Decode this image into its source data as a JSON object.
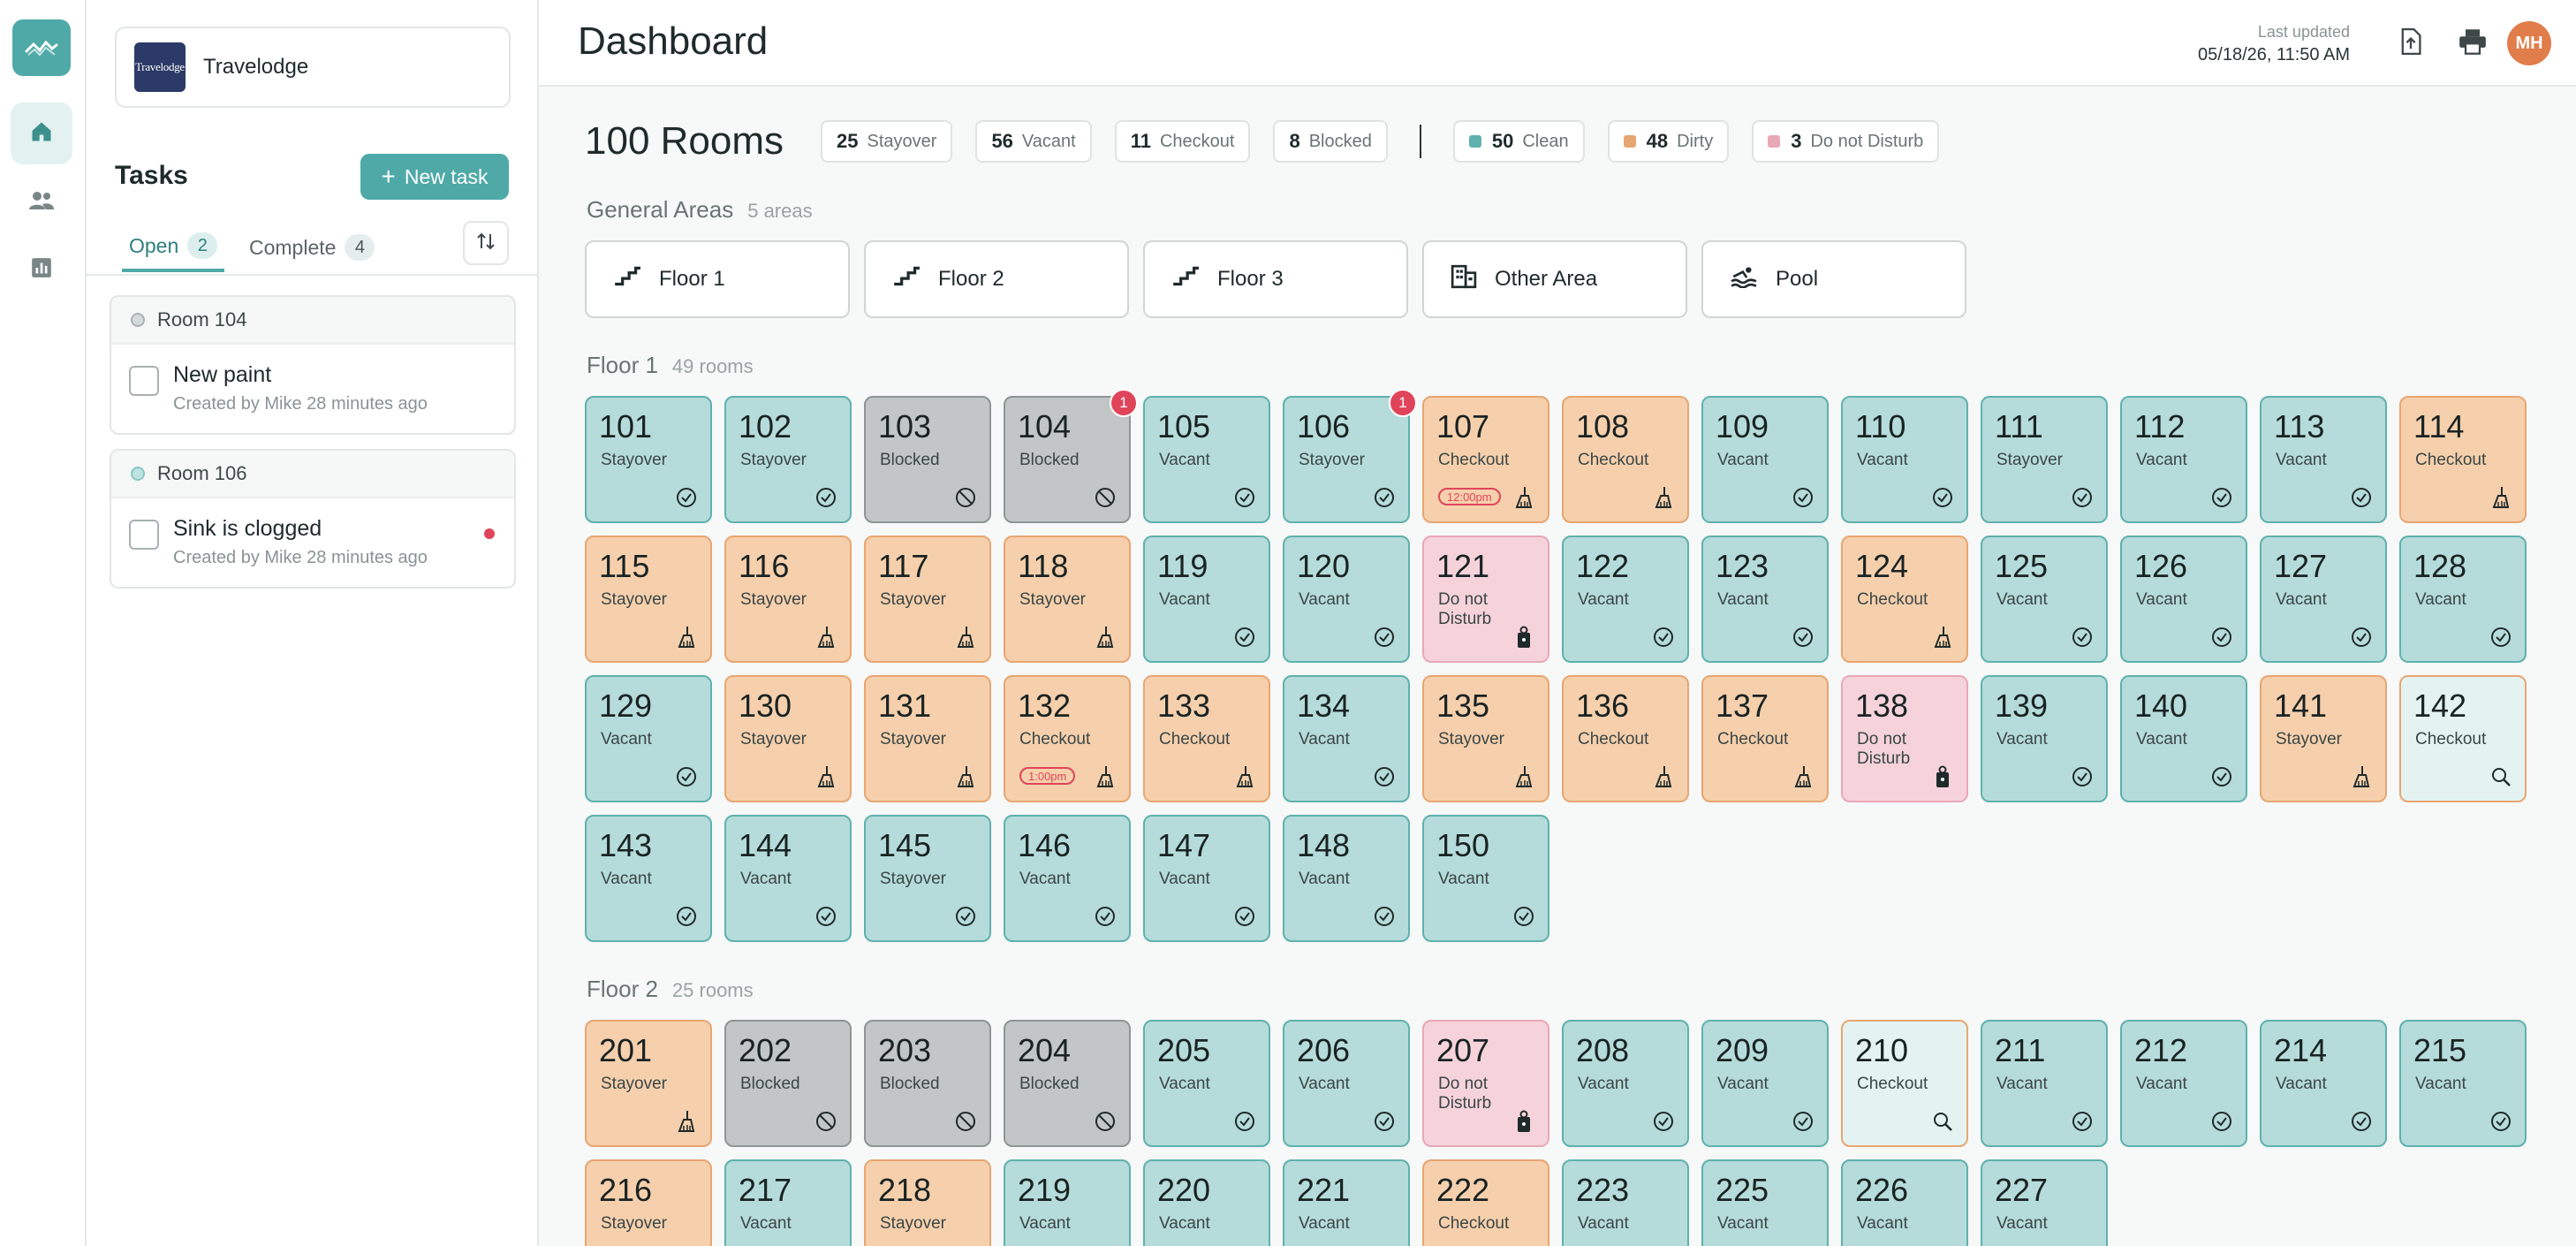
{
  "org": {
    "name": "Travelodge",
    "logo_text": "Travelodge"
  },
  "tasks": {
    "title": "Tasks",
    "new_task_label": "New task",
    "tabs": [
      {
        "label": "Open",
        "count": "2"
      },
      {
        "label": "Complete",
        "count": "4"
      }
    ],
    "items": [
      {
        "room": "Room 104",
        "title": "New paint",
        "meta": "Created by Mike 28 minutes ago",
        "flag": false
      },
      {
        "room": "Room 106",
        "title": "Sink is clogged",
        "meta": "Created by Mike 28 minutes ago",
        "flag": true
      }
    ]
  },
  "header": {
    "title": "Dashboard",
    "last_updated_label": "Last updated",
    "last_updated_value": "05/18/26, 11:50 AM",
    "avatar_initials": "MH"
  },
  "summary": {
    "rooms_label": "100 Rooms",
    "chips": [
      {
        "count": "25",
        "label": "Stayover"
      },
      {
        "count": "56",
        "label": "Vacant"
      },
      {
        "count": "11",
        "label": "Checkout"
      },
      {
        "count": "8",
        "label": "Blocked"
      }
    ],
    "clean_chips": [
      {
        "count": "50",
        "label": "Clean",
        "color": "#5fb1ad"
      },
      {
        "count": "48",
        "label": "Dirty",
        "color": "#e7a672"
      },
      {
        "count": "3",
        "label": "Do not Disturb",
        "color": "#e8a8b6"
      }
    ]
  },
  "general_areas": {
    "title": "General Areas",
    "count_label": "5 areas",
    "items": [
      {
        "label": "Floor 1",
        "icon": "stairs-icon"
      },
      {
        "label": "Floor 2",
        "icon": "stairs-icon"
      },
      {
        "label": "Floor 3",
        "icon": "stairs-icon"
      },
      {
        "label": "Other Area",
        "icon": "building-icon"
      },
      {
        "label": "Pool",
        "icon": "pool-icon"
      }
    ]
  },
  "floors": [
    {
      "title": "Floor 1",
      "count_label": "49 rooms",
      "rooms": [
        {
          "num": "101",
          "status": "Stayover",
          "state": "clean"
        },
        {
          "num": "102",
          "status": "Stayover",
          "state": "clean"
        },
        {
          "num": "103",
          "status": "Blocked",
          "state": "blocked"
        },
        {
          "num": "104",
          "status": "Blocked",
          "state": "blocked",
          "badge": "1"
        },
        {
          "num": "105",
          "status": "Vacant",
          "state": "clean"
        },
        {
          "num": "106",
          "status": "Stayover",
          "state": "clean",
          "badge": "1"
        },
        {
          "num": "107",
          "status": "Checkout",
          "state": "dirty",
          "time": "12:00pm"
        },
        {
          "num": "108",
          "status": "Checkout",
          "state": "dirty"
        },
        {
          "num": "109",
          "status": "Vacant",
          "state": "clean"
        },
        {
          "num": "110",
          "status": "Vacant",
          "state": "clean"
        },
        {
          "num": "111",
          "status": "Stayover",
          "state": "clean"
        },
        {
          "num": "112",
          "status": "Vacant",
          "state": "clean"
        },
        {
          "num": "113",
          "status": "Vacant",
          "state": "clean"
        },
        {
          "num": "114",
          "status": "Checkout",
          "state": "dirty"
        },
        {
          "num": "115",
          "status": "Stayover",
          "state": "dirty"
        },
        {
          "num": "116",
          "status": "Stayover",
          "state": "dirty"
        },
        {
          "num": "117",
          "status": "Stayover",
          "state": "dirty"
        },
        {
          "num": "118",
          "status": "Stayover",
          "state": "dirty"
        },
        {
          "num": "119",
          "status": "Vacant",
          "state": "clean"
        },
        {
          "num": "120",
          "status": "Vacant",
          "state": "clean"
        },
        {
          "num": "121",
          "status": "Do not Disturb",
          "state": "dnd"
        },
        {
          "num": "122",
          "status": "Vacant",
          "state": "clean"
        },
        {
          "num": "123",
          "status": "Vacant",
          "state": "clean"
        },
        {
          "num": "124",
          "status": "Checkout",
          "state": "dirty"
        },
        {
          "num": "125",
          "status": "Vacant",
          "state": "clean"
        },
        {
          "num": "126",
          "status": "Vacant",
          "state": "clean"
        },
        {
          "num": "127",
          "status": "Vacant",
          "state": "clean"
        },
        {
          "num": "128",
          "status": "Vacant",
          "state": "clean"
        },
        {
          "num": "129",
          "status": "Vacant",
          "state": "clean"
        },
        {
          "num": "130",
          "status": "Stayover",
          "state": "dirty"
        },
        {
          "num": "131",
          "status": "Stayover",
          "state": "dirty"
        },
        {
          "num": "132",
          "status": "Checkout",
          "state": "dirty",
          "time": "1:00pm"
        },
        {
          "num": "133",
          "status": "Checkout",
          "state": "dirty"
        },
        {
          "num": "134",
          "status": "Vacant",
          "state": "clean"
        },
        {
          "num": "135",
          "status": "Stayover",
          "state": "dirty"
        },
        {
          "num": "136",
          "status": "Checkout",
          "state": "dirty"
        },
        {
          "num": "137",
          "status": "Checkout",
          "state": "dirty"
        },
        {
          "num": "138",
          "status": "Do not Disturb",
          "state": "dnd"
        },
        {
          "num": "139",
          "status": "Vacant",
          "state": "clean"
        },
        {
          "num": "140",
          "status": "Vacant",
          "state": "clean"
        },
        {
          "num": "141",
          "status": "Stayover",
          "state": "dirty"
        },
        {
          "num": "142",
          "status": "Checkout",
          "state": "inspect"
        },
        {
          "num": "143",
          "status": "Vacant",
          "state": "clean"
        },
        {
          "num": "144",
          "status": "Vacant",
          "state": "clean"
        },
        {
          "num": "145",
          "status": "Stayover",
          "state": "clean"
        },
        {
          "num": "146",
          "status": "Vacant",
          "state": "clean"
        },
        {
          "num": "147",
          "status": "Vacant",
          "state": "clean"
        },
        {
          "num": "148",
          "status": "Vacant",
          "state": "clean"
        },
        {
          "num": "150",
          "status": "Vacant",
          "state": "clean"
        }
      ]
    },
    {
      "title": "Floor 2",
      "count_label": "25 rooms",
      "rooms": [
        {
          "num": "201",
          "status": "Stayover",
          "state": "dirty"
        },
        {
          "num": "202",
          "status": "Blocked",
          "state": "blocked"
        },
        {
          "num": "203",
          "status": "Blocked",
          "state": "blocked"
        },
        {
          "num": "204",
          "status": "Blocked",
          "state": "blocked"
        },
        {
          "num": "205",
          "status": "Vacant",
          "state": "clean"
        },
        {
          "num": "206",
          "status": "Vacant",
          "state": "clean"
        },
        {
          "num": "207",
          "status": "Do not Disturb",
          "state": "dnd"
        },
        {
          "num": "208",
          "status": "Vacant",
          "state": "clean"
        },
        {
          "num": "209",
          "status": "Vacant",
          "state": "clean"
        },
        {
          "num": "210",
          "status": "Checkout",
          "state": "inspect"
        },
        {
          "num": "211",
          "status": "Vacant",
          "state": "clean"
        },
        {
          "num": "212",
          "status": "Vacant",
          "state": "clean"
        },
        {
          "num": "214",
          "status": "Vacant",
          "state": "clean"
        },
        {
          "num": "215",
          "status": "Vacant",
          "state": "clean"
        },
        {
          "num": "216",
          "status": "Stayover",
          "state": "dirty"
        },
        {
          "num": "217",
          "status": "Vacant",
          "state": "clean"
        },
        {
          "num": "218",
          "status": "Stayover",
          "state": "dirty"
        },
        {
          "num": "219",
          "status": "Vacant",
          "state": "clean"
        },
        {
          "num": "220",
          "status": "Vacant",
          "state": "clean"
        },
        {
          "num": "221",
          "status": "Vacant",
          "state": "clean"
        },
        {
          "num": "222",
          "status": "Checkout",
          "state": "dirty"
        },
        {
          "num": "223",
          "status": "Vacant",
          "state": "clean"
        },
        {
          "num": "225",
          "status": "Vacant",
          "state": "clean"
        },
        {
          "num": "226",
          "status": "Vacant",
          "state": "clean"
        },
        {
          "num": "227",
          "status": "Vacant",
          "state": "clean"
        }
      ]
    }
  ]
}
